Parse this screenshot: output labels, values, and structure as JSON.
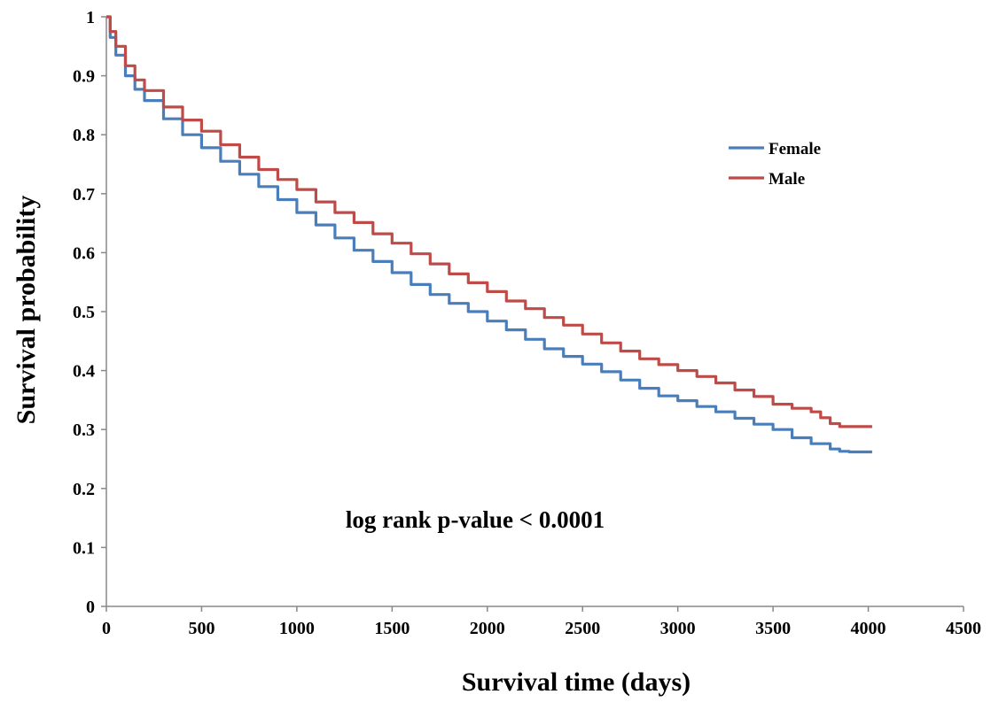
{
  "chart_data": {
    "type": "line",
    "title": "",
    "xlabel": "Survival time (days)",
    "ylabel": "Survival probability",
    "xlim": [
      0,
      4500
    ],
    "ylim": [
      0,
      1
    ],
    "x_ticks": [
      0,
      500,
      1000,
      1500,
      2000,
      2500,
      3000,
      3500,
      4000,
      4500
    ],
    "y_ticks": [
      0,
      0.1,
      0.2,
      0.3,
      0.4,
      0.5,
      0.6,
      0.7,
      0.8,
      0.9,
      1
    ],
    "x_tick_labels": [
      "0",
      "500",
      "1000",
      "1500",
      "2000",
      "2500",
      "3000",
      "3500",
      "4000",
      "4500"
    ],
    "y_tick_labels": [
      "0",
      "0.1",
      "0.2",
      "0.3",
      "0.4",
      "0.5",
      "0.6",
      "0.7",
      "0.8",
      "0.9",
      "1"
    ],
    "grid": false,
    "legend_position": "upper-right",
    "annotation": "log rank p-value < 0.0001",
    "series": [
      {
        "name": "Female",
        "color": "#4a7ebb",
        "x": [
          0,
          20,
          50,
          100,
          150,
          200,
          300,
          400,
          500,
          600,
          700,
          800,
          900,
          1000,
          1100,
          1200,
          1300,
          1400,
          1500,
          1600,
          1700,
          1800,
          1900,
          2000,
          2100,
          2200,
          2300,
          2400,
          2500,
          2600,
          2700,
          2800,
          2900,
          3000,
          3100,
          3200,
          3300,
          3400,
          3500,
          3600,
          3700,
          3800,
          3850,
          3900,
          4020
        ],
        "y": [
          1.0,
          0.965,
          0.935,
          0.9,
          0.877,
          0.858,
          0.827,
          0.8,
          0.778,
          0.755,
          0.733,
          0.712,
          0.69,
          0.668,
          0.647,
          0.625,
          0.604,
          0.585,
          0.566,
          0.546,
          0.529,
          0.514,
          0.5,
          0.484,
          0.469,
          0.453,
          0.437,
          0.424,
          0.411,
          0.398,
          0.384,
          0.37,
          0.357,
          0.349,
          0.339,
          0.33,
          0.319,
          0.309,
          0.3,
          0.286,
          0.276,
          0.267,
          0.263,
          0.262,
          0.262
        ]
      },
      {
        "name": "Male",
        "color": "#be4b48",
        "x": [
          0,
          20,
          50,
          100,
          150,
          200,
          300,
          400,
          500,
          600,
          700,
          800,
          900,
          1000,
          1100,
          1200,
          1300,
          1400,
          1500,
          1600,
          1700,
          1800,
          1900,
          2000,
          2100,
          2200,
          2300,
          2400,
          2500,
          2600,
          2700,
          2800,
          2900,
          3000,
          3100,
          3200,
          3300,
          3400,
          3500,
          3600,
          3700,
          3750,
          3800,
          3850,
          4020
        ],
        "y": [
          1.0,
          0.975,
          0.95,
          0.917,
          0.893,
          0.875,
          0.847,
          0.825,
          0.806,
          0.783,
          0.762,
          0.741,
          0.724,
          0.707,
          0.686,
          0.668,
          0.651,
          0.632,
          0.616,
          0.598,
          0.581,
          0.564,
          0.549,
          0.534,
          0.518,
          0.505,
          0.49,
          0.477,
          0.462,
          0.447,
          0.433,
          0.42,
          0.41,
          0.4,
          0.39,
          0.379,
          0.367,
          0.356,
          0.343,
          0.336,
          0.33,
          0.32,
          0.31,
          0.305,
          0.305
        ]
      }
    ]
  }
}
